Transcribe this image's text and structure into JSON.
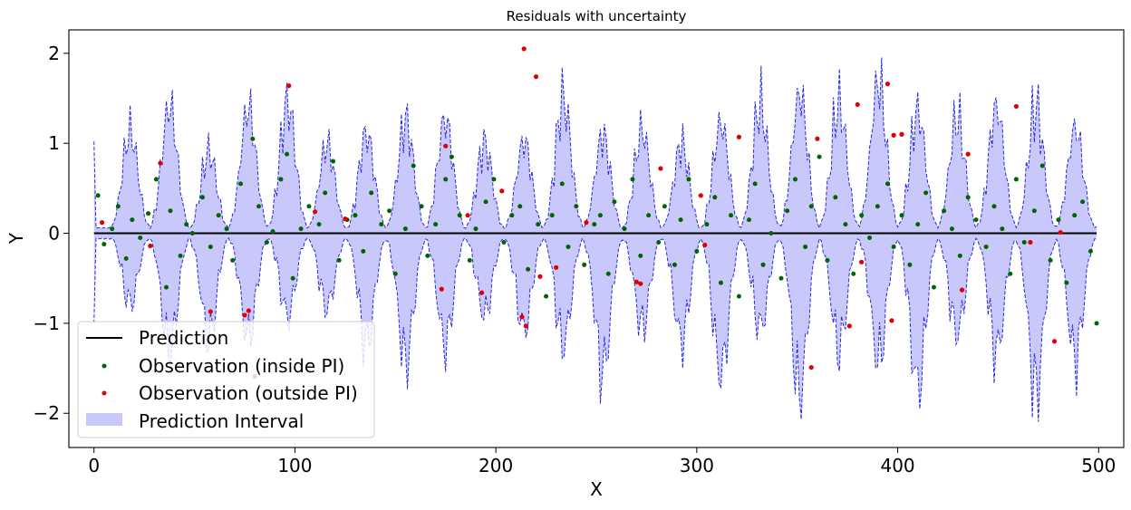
{
  "chart_data": {
    "type": "line",
    "title": "Residuals with uncertainty",
    "xlabel": "X",
    "ylabel": "Y",
    "xlim": [
      -12.5,
      512.5
    ],
    "ylim": [
      -2.38,
      2.26
    ],
    "xticks": [
      0,
      100,
      200,
      300,
      400,
      500
    ],
    "xtick_labels": [
      "0",
      "100",
      "200",
      "300",
      "400",
      "500"
    ],
    "yticks": [
      -2,
      -1,
      0,
      1,
      2
    ],
    "ytick_labels": [
      "−2",
      "−1",
      "0",
      "1",
      "2"
    ],
    "grid": false,
    "legend_position": "lower-left",
    "colors": {
      "prediction": "#000000",
      "inside": "#006400",
      "outside": "#e00000",
      "interval_fill": "#c8c8fa",
      "interval_edge": "#2a2ad8"
    },
    "prediction": {
      "name": "Prediction",
      "x": [
        0,
        499
      ],
      "y": [
        0,
        0
      ]
    },
    "interval": {
      "name": "Prediction Interval",
      "x_start": 0,
      "x_end": 499,
      "x_step": 1,
      "envelope_period": 19.6,
      "envelope_peak_offset": 18.0,
      "envelope_width": 5.5,
      "envelope_base": 0.06,
      "upper_peaks": [
        1.38,
        1.72,
        1.1,
        1.7,
        1.76,
        1.2,
        1.35,
        1.52,
        1.55,
        1.2,
        1.25,
        1.82,
        1.32,
        1.4,
        1.2,
        1.5,
        1.73,
        1.9,
        1.75,
        2.05,
        1.65,
        1.55,
        1.72,
        1.68,
        1.44,
        1.38
      ],
      "lower_peaks": [
        -0.95,
        -1.6,
        -1.42,
        -1.4,
        -1.12,
        -1.0,
        -1.5,
        -1.72,
        -1.5,
        -1.1,
        -1.3,
        -1.5,
        -1.86,
        -1.25,
        -1.45,
        -1.9,
        -1.28,
        -2.15,
        -1.55,
        -1.7,
        -2.08,
        -1.35,
        -1.6,
        -2.12,
        -1.68,
        -1.25
      ],
      "edge_start": [
        1.02,
        -1.0
      ]
    },
    "inside_points": {
      "name": "Observation (inside PI)",
      "x": [
        2,
        5,
        9,
        12,
        16,
        19,
        23,
        27,
        31,
        36,
        38,
        43,
        46,
        49,
        54,
        58,
        62,
        66,
        69,
        73,
        79,
        82,
        86,
        89,
        93,
        96,
        99,
        103,
        107,
        112,
        115,
        119,
        122,
        126,
        130,
        134,
        138,
        143,
        147,
        150,
        155,
        159,
        163,
        166,
        170,
        175,
        178,
        182,
        187,
        190,
        195,
        199,
        204,
        208,
        212,
        216,
        221,
        225,
        228,
        233,
        236,
        240,
        244,
        249,
        252,
        256,
        259,
        264,
        268,
        272,
        276,
        281,
        284,
        289,
        292,
        296,
        300,
        305,
        309,
        312,
        317,
        321,
        326,
        329,
        333,
        337,
        342,
        345,
        349,
        354,
        357,
        361,
        365,
        369,
        374,
        378,
        382,
        386,
        390,
        395,
        398,
        402,
        406,
        410,
        414,
        418,
        423,
        427,
        431,
        435,
        439,
        444,
        448,
        452,
        456,
        459,
        463,
        468,
        472,
        476,
        480,
        484,
        488,
        492,
        496,
        499
      ],
      "y": [
        0.42,
        -0.12,
        0.05,
        0.3,
        -0.28,
        0.15,
        -0.05,
        0.22,
        0.6,
        -0.6,
        0.25,
        -0.25,
        0.1,
        0.0,
        0.4,
        -0.15,
        0.2,
        0.05,
        -0.3,
        0.55,
        1.05,
        0.3,
        -0.1,
        0.02,
        0.6,
        0.88,
        -0.5,
        0.05,
        0.3,
        0.1,
        0.45,
        0.8,
        -0.3,
        0.15,
        0.2,
        -0.2,
        0.45,
        0.1,
        0.25,
        -0.45,
        0.05,
        0.75,
        0.3,
        -0.25,
        0.1,
        0.6,
        0.85,
        0.2,
        -0.3,
        0.05,
        0.35,
        0.6,
        -0.1,
        0.2,
        0.3,
        -0.4,
        0.1,
        -0.7,
        0.2,
        0.55,
        -0.15,
        0.3,
        -0.35,
        0.1,
        0.2,
        -0.45,
        0.35,
        0.05,
        0.6,
        -0.25,
        0.2,
        -0.1,
        0.3,
        -0.35,
        0.15,
        0.6,
        -0.2,
        0.1,
        0.4,
        -0.55,
        0.2,
        -0.7,
        0.15,
        0.55,
        -0.35,
        0.0,
        -0.5,
        0.25,
        0.6,
        -0.15,
        0.3,
        0.85,
        -0.3,
        0.4,
        0.1,
        -0.45,
        0.2,
        -0.05,
        0.3,
        0.55,
        -0.15,
        0.2,
        -0.35,
        0.1,
        0.45,
        -0.6,
        0.25,
        0.05,
        -0.25,
        0.4,
        0.15,
        -0.15,
        0.3,
        0.05,
        -0.45,
        0.6,
        -0.1,
        0.25,
        0.75,
        -0.3,
        0.15,
        -0.55,
        0.2,
        0.35,
        -0.2,
        -1.0
      ],
      "marker_size": 2.5
    },
    "outside_points": {
      "name": "Observation (outside PI)",
      "x": [
        4,
        28,
        33,
        58,
        75,
        77,
        80,
        97,
        110,
        125,
        173,
        175,
        186,
        193,
        203,
        213,
        214,
        215,
        220,
        222,
        230,
        245,
        270,
        272,
        282,
        302,
        304,
        321,
        357,
        360,
        376,
        380,
        382,
        395,
        397,
        398,
        402,
        432,
        435,
        459,
        466,
        478,
        481
      ],
      "y": [
        0.12,
        -0.14,
        0.78,
        -0.87,
        -0.91,
        -0.86,
        -1.59,
        1.64,
        0.24,
        0.16,
        -0.62,
        0.97,
        0.2,
        -0.66,
        0.47,
        -0.93,
        2.05,
        -1.03,
        1.74,
        -0.48,
        -0.38,
        0.12,
        -0.54,
        -0.56,
        0.72,
        0.42,
        -0.13,
        1.07,
        -1.49,
        1.05,
        -1.03,
        1.43,
        -0.32,
        1.66,
        -0.97,
        1.09,
        1.1,
        -0.63,
        0.88,
        1.41,
        -0.1,
        -1.2,
        0.01
      ],
      "marker_size": 2.6
    }
  }
}
